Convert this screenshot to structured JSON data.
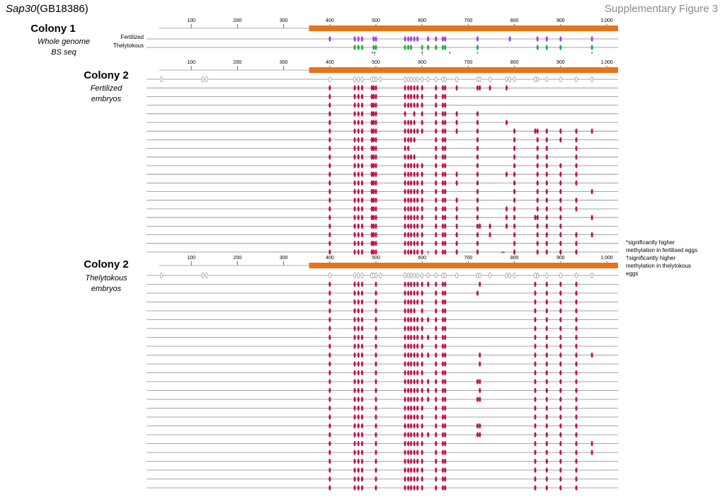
{
  "header": {
    "gene_italic": "Sap30",
    "gene_id": "(GB18386)",
    "figure_label": "Supplementary Figure 3"
  },
  "panels": {
    "colony1": {
      "heading": "Colony 1",
      "subtitle_lines": [
        "Whole genome",
        "BS seq"
      ],
      "track_labels": [
        "Fertilized",
        "Thelytokous"
      ]
    },
    "colony2_fertilized": {
      "heading": "Colony 2",
      "subtitle_lines": [
        "Fertilized",
        "embryos"
      ]
    },
    "colony2_thelytokous": {
      "heading": "Colony 2",
      "subtitle_lines": [
        "Thelytokous",
        "embryos"
      ]
    }
  },
  "axis": {
    "ticks": [
      100,
      200,
      300,
      400,
      500,
      600,
      700,
      800,
      900,
      1000
    ],
    "tick_labels": [
      "100",
      "200",
      "300",
      "400",
      "500",
      "600",
      "700",
      "800",
      "900",
      "1,000"
    ]
  },
  "legend": {
    "lines": [
      "*significantly higher",
      "methylation in fertilised eggs",
      "†significantly higher",
      "methylation in thelytokous",
      "eggs"
    ]
  },
  "colors": {
    "amplicon_bar": "#e8731a",
    "methylated": "#c0144c",
    "fertilized_track": "#a040e0",
    "thelytokous_track": "#20b040",
    "unmethylated_outline": "#999999",
    "line": "#888888"
  },
  "cpg_positions": [
    400,
    454,
    462,
    470,
    491,
    495,
    500,
    510,
    563,
    570,
    576,
    583,
    590,
    600,
    613,
    630,
    645,
    650,
    675,
    720,
    725,
    747,
    783,
    790,
    800,
    845,
    850,
    870,
    900,
    934,
    968
  ],
  "colony1_marks": {
    "fertilized": [
      400,
      454,
      462,
      470,
      495,
      500,
      563,
      570,
      576,
      583,
      590,
      613,
      630,
      645,
      650,
      720,
      790,
      850,
      870,
      900,
      968
    ],
    "thelytokous": [
      454,
      462,
      470,
      495,
      500,
      563,
      570,
      576,
      600,
      613,
      630,
      645,
      650,
      720,
      850,
      870,
      900,
      968
    ],
    "annotations": [
      {
        "pos": 495,
        "text": "*†"
      },
      {
        "pos": 600,
        "text": "†"
      },
      {
        "pos": 660,
        "text": "*"
      },
      {
        "pos": 720,
        "text": "*"
      },
      {
        "pos": 968,
        "text": "*"
      }
    ]
  },
  "colony2_fertilized_rows": [
    [
      400,
      454,
      462,
      470,
      491,
      495,
      500,
      563,
      570,
      576,
      583,
      590,
      600,
      630,
      645,
      650,
      675,
      720,
      725,
      747,
      783
    ],
    [
      400,
      454,
      462,
      470,
      491,
      495,
      500,
      563,
      570,
      576,
      583,
      590,
      600,
      630,
      645,
      650
    ],
    [
      400,
      454,
      462,
      470,
      491,
      495,
      500,
      563,
      570,
      576,
      583,
      590,
      600,
      630,
      645,
      650
    ],
    [
      400,
      454,
      462,
      470,
      491,
      495,
      500,
      563,
      583,
      600,
      630,
      645,
      650,
      675,
      720
    ],
    [
      400,
      454,
      462,
      470,
      491,
      495,
      500,
      563,
      570,
      576,
      583,
      600,
      630,
      645,
      650,
      675,
      720,
      783
    ],
    [
      400,
      454,
      462,
      470,
      491,
      495,
      500,
      563,
      570,
      576,
      583,
      590,
      600,
      630,
      645,
      650,
      675,
      720,
      800,
      845,
      850,
      870,
      900,
      934,
      968
    ],
    [
      400,
      454,
      462,
      470,
      491,
      495,
      500,
      563,
      570,
      576,
      583,
      630,
      645,
      650,
      720,
      800,
      850,
      870,
      900,
      934
    ],
    [
      400,
      454,
      462,
      470,
      491,
      495,
      500,
      563,
      570,
      630,
      645,
      650,
      720,
      800,
      850,
      870,
      934
    ],
    [
      400,
      454,
      462,
      470,
      491,
      495,
      500,
      563,
      570,
      576,
      583,
      630,
      645,
      650,
      720,
      800,
      850,
      870,
      934
    ],
    [
      400,
      454,
      462,
      470,
      491,
      495,
      500,
      563,
      570,
      576,
      583,
      590,
      600,
      630,
      645,
      650,
      720,
      800,
      850,
      870,
      900,
      934
    ],
    [
      400,
      454,
      462,
      470,
      491,
      495,
      500,
      563,
      570,
      576,
      583,
      590,
      600,
      630,
      645,
      650,
      675,
      720,
      783,
      800,
      850,
      870,
      900,
      934
    ],
    [
      400,
      454,
      462,
      470,
      491,
      495,
      500,
      563,
      570,
      576,
      583,
      590,
      600,
      630,
      645,
      650,
      675,
      720,
      800,
      850,
      870,
      900,
      934
    ],
    [
      400,
      454,
      462,
      470,
      491,
      495,
      500,
      563,
      570,
      576,
      583,
      590,
      600,
      630,
      645,
      650,
      720,
      800,
      850,
      870,
      900,
      968
    ],
    [
      400,
      454,
      462,
      470,
      491,
      495,
      500,
      563,
      570,
      576,
      583,
      590,
      600,
      630,
      645,
      650,
      675,
      720,
      800,
      850,
      870,
      900,
      934
    ],
    [
      400,
      454,
      462,
      470,
      491,
      495,
      500,
      563,
      570,
      576,
      583,
      590,
      600,
      630,
      645,
      650,
      675,
      720,
      783,
      800,
      850,
      870,
      900,
      934
    ],
    [
      400,
      454,
      462,
      470,
      491,
      495,
      500,
      563,
      570,
      576,
      583,
      590,
      600,
      630,
      645,
      650,
      675,
      720,
      783,
      800,
      845,
      850,
      870,
      900,
      968
    ],
    [
      400,
      454,
      462,
      470,
      491,
      495,
      500,
      563,
      570,
      576,
      583,
      590,
      600,
      630,
      645,
      650,
      675,
      720,
      725,
      747,
      783,
      800,
      850,
      870,
      900
    ],
    [
      400,
      454,
      462,
      470,
      491,
      495,
      500,
      563,
      570,
      576,
      583,
      590,
      600,
      630,
      645,
      650,
      675,
      720,
      747,
      800,
      850,
      870,
      900,
      934,
      968
    ],
    [
      400,
      454,
      462,
      470,
      491,
      495,
      500,
      563,
      570,
      576,
      583,
      590,
      600,
      630,
      645,
      650,
      675,
      720,
      800,
      850,
      870,
      900,
      934
    ],
    [
      400,
      454,
      462,
      470,
      491,
      495,
      500,
      563,
      570,
      576,
      583,
      590,
      600,
      630,
      645,
      650,
      675,
      720,
      800,
      850,
      870,
      900,
      934
    ]
  ],
  "colony2_fertilized_annotations": [
    {
      "pos": 576,
      "text": "*"
    },
    {
      "pos": 613,
      "text": "†"
    },
    {
      "pos": 775,
      "text": "**"
    }
  ],
  "colony2_thelytokous_rows": [
    [
      400,
      454,
      462,
      470,
      500,
      563,
      570,
      576,
      583,
      590,
      600,
      613,
      630,
      645,
      650,
      725,
      845,
      870,
      900,
      934
    ],
    [
      400,
      454,
      462,
      470,
      500,
      563,
      570,
      576,
      583,
      590,
      600,
      630,
      645,
      650,
      720,
      845,
      870,
      900,
      934
    ],
    [
      400,
      454,
      462,
      470,
      500,
      563,
      570,
      576,
      583,
      590,
      600,
      630,
      645,
      650,
      845,
      870,
      900,
      934
    ],
    [
      400,
      454,
      462,
      470,
      500,
      563,
      570,
      576,
      583,
      600,
      630,
      645,
      650,
      845,
      870,
      900,
      934
    ],
    [
      400,
      454,
      462,
      470,
      500,
      563,
      570,
      576,
      583,
      590,
      600,
      613,
      630,
      645,
      650,
      845,
      870,
      900,
      934
    ],
    [
      400,
      454,
      462,
      470,
      500,
      563,
      570,
      576,
      583,
      590,
      600,
      630,
      645,
      650,
      845,
      870,
      900,
      934
    ],
    [
      400,
      454,
      462,
      470,
      500,
      563,
      570,
      576,
      583,
      590,
      600,
      613,
      630,
      645,
      650,
      845,
      870,
      900,
      934
    ],
    [
      400,
      454,
      462,
      470,
      500,
      563,
      570,
      576,
      583,
      590,
      600,
      630,
      645,
      650,
      845,
      870,
      900,
      934
    ],
    [
      400,
      454,
      462,
      470,
      500,
      563,
      570,
      576,
      583,
      590,
      600,
      613,
      630,
      645,
      650,
      725,
      845,
      870,
      900,
      934,
      968
    ],
    [
      400,
      454,
      462,
      470,
      500,
      563,
      570,
      576,
      583,
      590,
      600,
      630,
      645,
      650,
      725,
      845,
      870,
      900,
      934
    ],
    [
      400,
      454,
      462,
      470,
      500,
      563,
      570,
      576,
      583,
      590,
      600,
      630,
      645,
      650,
      845,
      870,
      900,
      934
    ],
    [
      400,
      454,
      462,
      470,
      500,
      563,
      570,
      576,
      583,
      590,
      600,
      613,
      630,
      645,
      650,
      720,
      725,
      845,
      870,
      900,
      934
    ],
    [
      400,
      454,
      462,
      470,
      500,
      563,
      570,
      576,
      583,
      590,
      600,
      613,
      630,
      645,
      650,
      725,
      845,
      870,
      900,
      934
    ],
    [
      400,
      454,
      462,
      470,
      500,
      563,
      570,
      576,
      583,
      590,
      600,
      613,
      630,
      645,
      650,
      720,
      725,
      845,
      870,
      900,
      934
    ],
    [
      400,
      454,
      462,
      470,
      500,
      563,
      570,
      576,
      583,
      590,
      600,
      630,
      645,
      650,
      845,
      870,
      900,
      934
    ],
    [
      400,
      454,
      462,
      470,
      500,
      563,
      570,
      576,
      583,
      590,
      600,
      630,
      645,
      650,
      845,
      870,
      900,
      934
    ],
    [
      400,
      454,
      462,
      470,
      500,
      563,
      570,
      576,
      583,
      590,
      600,
      630,
      645,
      650,
      720,
      725,
      845,
      870,
      900,
      934
    ],
    [
      400,
      454,
      462,
      470,
      500,
      563,
      570,
      576,
      583,
      590,
      600,
      613,
      630,
      645,
      650,
      720,
      725,
      845,
      870,
      900,
      934
    ],
    [
      400,
      454,
      462,
      470,
      500,
      563,
      570,
      576,
      583,
      590,
      600,
      630,
      645,
      650,
      845,
      870,
      900,
      934,
      968
    ],
    [
      400,
      454,
      462,
      470,
      500,
      563,
      570,
      576,
      583,
      590,
      600,
      630,
      645,
      650,
      845,
      870,
      900,
      934,
      968
    ],
    [
      400,
      454,
      462,
      470,
      500,
      563,
      570,
      576,
      583,
      590,
      600,
      630,
      645,
      650,
      845,
      870,
      900,
      934
    ],
    [
      400,
      454,
      462,
      470,
      500,
      563,
      570,
      576,
      583,
      590,
      600,
      630,
      645,
      650,
      845,
      870,
      900,
      934
    ],
    [
      400,
      454,
      462,
      470,
      500,
      563,
      570,
      576,
      583,
      590,
      600,
      630,
      645,
      650,
      845,
      870,
      900,
      934
    ],
    [
      400,
      454,
      462,
      470,
      500,
      563,
      570,
      576,
      583,
      590,
      600,
      630,
      645,
      650,
      845,
      870,
      900,
      934
    ]
  ]
}
